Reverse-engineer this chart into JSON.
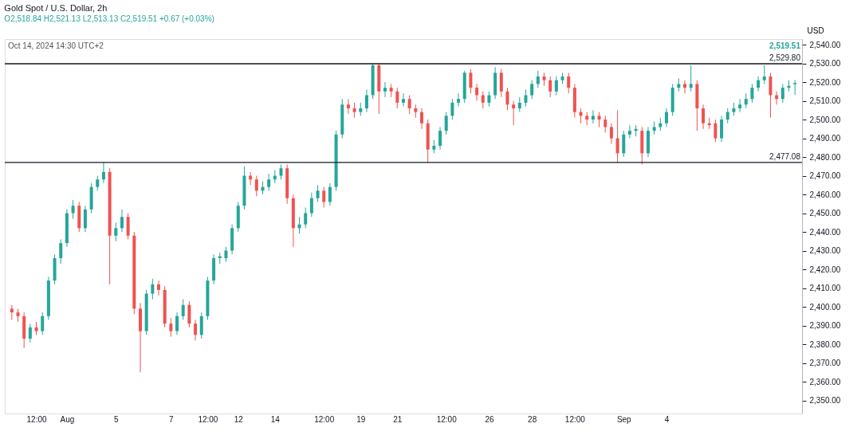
{
  "chart_data": {
    "type": "candlestick",
    "title": "Gold Spot / U.S. Dollar, 2h",
    "subtitle": "O2,518.84 H2,521.13 L2,513.13 C2,519.51 +0.67 (+0.03%)",
    "ylabel": "USD",
    "annotations": [
      "Oct 14, 2024 14:30 UTC+2",
      "2,519.51"
    ],
    "categories": [
      null,
      null,
      null,
      null,
      "12:00",
      null,
      null,
      null,
      null,
      "Aug",
      null,
      null,
      null,
      null,
      null,
      null,
      null,
      "5",
      null,
      null,
      null,
      null,
      null,
      null,
      null,
      null,
      "7",
      null,
      null,
      null,
      null,
      null,
      "12:00",
      null,
      null,
      null,
      null,
      "12",
      null,
      null,
      null,
      null,
      null,
      "14",
      null,
      null,
      null,
      null,
      null,
      null,
      null,
      "12:00",
      null,
      null,
      null,
      null,
      null,
      "19",
      null,
      null,
      null,
      null,
      null,
      "21",
      null,
      null,
      null,
      null,
      null,
      null,
      null,
      "12:00",
      null,
      null,
      null,
      null,
      null,
      null,
      "26",
      null,
      null,
      null,
      null,
      null,
      null,
      "28",
      null,
      null,
      null,
      null,
      null,
      null,
      "12:00",
      null,
      null,
      null,
      null,
      null,
      null,
      null,
      "Sep",
      null,
      null,
      null,
      null,
      null,
      null,
      "4",
      null,
      null,
      null,
      null,
      null,
      null,
      null,
      null,
      null,
      null,
      null,
      null,
      null,
      null,
      null,
      null,
      null,
      null,
      null,
      null,
      null
    ],
    "ohlc": [
      [
        2399,
        2401,
        2393,
        2397
      ],
      [
        2397,
        2399,
        2392,
        2395
      ],
      [
        2395,
        2397,
        2378,
        2383
      ],
      [
        2383,
        2391,
        2381,
        2389
      ],
      [
        2389,
        2392,
        2385,
        2387
      ],
      [
        2387,
        2397,
        2385,
        2395
      ],
      [
        2395,
        2416,
        2393,
        2414
      ],
      [
        2414,
        2428,
        2412,
        2426
      ],
      [
        2426,
        2436,
        2423,
        2434
      ],
      [
        2434,
        2452,
        2432,
        2450
      ],
      [
        2450,
        2457,
        2447,
        2454
      ],
      [
        2454,
        2456,
        2440,
        2442
      ],
      [
        2442,
        2454,
        2440,
        2452
      ],
      [
        2452,
        2466,
        2450,
        2464
      ],
      [
        2464,
        2470,
        2462,
        2468
      ],
      [
        2468,
        2477,
        2466,
        2472
      ],
      [
        2472,
        2474,
        2412,
        2438
      ],
      [
        2438,
        2445,
        2435,
        2442
      ],
      [
        2442,
        2452,
        2440,
        2448
      ],
      [
        2448,
        2450,
        2436,
        2438
      ],
      [
        2438,
        2440,
        2396,
        2399
      ],
      [
        2399,
        2402,
        2365,
        2387
      ],
      [
        2387,
        2409,
        2385,
        2407
      ],
      [
        2407,
        2415,
        2404,
        2412
      ],
      [
        2412,
        2414,
        2406,
        2409
      ],
      [
        2409,
        2411,
        2389,
        2391
      ],
      [
        2391,
        2394,
        2384,
        2387
      ],
      [
        2387,
        2397,
        2385,
        2395
      ],
      [
        2395,
        2404,
        2393,
        2401
      ],
      [
        2401,
        2403,
        2389,
        2391
      ],
      [
        2391,
        2393,
        2382,
        2385
      ],
      [
        2385,
        2397,
        2383,
        2395
      ],
      [
        2395,
        2416,
        2393,
        2414
      ],
      [
        2414,
        2428,
        2412,
        2426
      ],
      [
        2426,
        2429,
        2423,
        2427
      ],
      [
        2426,
        2432,
        2424,
        2430
      ],
      [
        2430,
        2444,
        2428,
        2442
      ],
      [
        2442,
        2456,
        2440,
        2454
      ],
      [
        2454,
        2475,
        2452,
        2470
      ],
      [
        2470,
        2472,
        2465,
        2468
      ],
      [
        2468,
        2470,
        2459,
        2462
      ],
      [
        2462,
        2467,
        2460,
        2464
      ],
      [
        2464,
        2471,
        2462,
        2468
      ],
      [
        2468,
        2473,
        2466,
        2470
      ],
      [
        2470,
        2476,
        2468,
        2474
      ],
      [
        2474,
        2476,
        2455,
        2458
      ],
      [
        2458,
        2460,
        2432,
        2442
      ],
      [
        2442,
        2448,
        2439,
        2444
      ],
      [
        2444,
        2453,
        2442,
        2450
      ],
      [
        2450,
        2461,
        2448,
        2458
      ],
      [
        2458,
        2465,
        2456,
        2462
      ],
      [
        2462,
        2464,
        2453,
        2456
      ],
      [
        2456,
        2466,
        2454,
        2464
      ],
      [
        2464,
        2494,
        2462,
        2492
      ],
      [
        2492,
        2511,
        2490,
        2508
      ],
      [
        2508,
        2511,
        2503,
        2506
      ],
      [
        2506,
        2509,
        2501,
        2504
      ],
      [
        2504,
        2509,
        2502,
        2506
      ],
      [
        2506,
        2516,
        2504,
        2513
      ],
      [
        2513,
        2530,
        2511,
        2529
      ],
      [
        2529,
        2530,
        2503,
        2515
      ],
      [
        2515,
        2520,
        2512,
        2517
      ],
      [
        2517,
        2519,
        2512,
        2515
      ],
      [
        2515,
        2517,
        2506,
        2509
      ],
      [
        2509,
        2514,
        2507,
        2511
      ],
      [
        2511,
        2513,
        2503,
        2506
      ],
      [
        2506,
        2508,
        2501,
        2504
      ],
      [
        2504,
        2506,
        2495,
        2498
      ],
      [
        2498,
        2500,
        2477,
        2484
      ],
      [
        2484,
        2489,
        2482,
        2486
      ],
      [
        2486,
        2496,
        2484,
        2494
      ],
      [
        2494,
        2504,
        2492,
        2502
      ],
      [
        2502,
        2511,
        2500,
        2509
      ],
      [
        2509,
        2514,
        2507,
        2511
      ],
      [
        2511,
        2526,
        2509,
        2525
      ],
      [
        2525,
        2527,
        2514,
        2517
      ],
      [
        2517,
        2519,
        2510,
        2513
      ],
      [
        2513,
        2515,
        2506,
        2509
      ],
      [
        2509,
        2515,
        2507,
        2513
      ],
      [
        2513,
        2528,
        2511,
        2525
      ],
      [
        2525,
        2527,
        2512,
        2515
      ],
      [
        2515,
        2517,
        2505,
        2508
      ],
      [
        2508,
        2510,
        2497,
        2506
      ],
      [
        2506,
        2512,
        2504,
        2509
      ],
      [
        2509,
        2516,
        2507,
        2513
      ],
      [
        2513,
        2521,
        2511,
        2519
      ],
      [
        2519,
        2526,
        2517,
        2523
      ],
      [
        2523,
        2525,
        2518,
        2521
      ],
      [
        2521,
        2523,
        2512,
        2515
      ],
      [
        2515,
        2523,
        2513,
        2521
      ],
      [
        2521,
        2525,
        2519,
        2523
      ],
      [
        2523,
        2525,
        2514,
        2517
      ],
      [
        2517,
        2519,
        2501,
        2504
      ],
      [
        2504,
        2506,
        2498,
        2502
      ],
      [
        2502,
        2504,
        2497,
        2500
      ],
      [
        2500,
        2505,
        2498,
        2502
      ],
      [
        2502,
        2504,
        2496,
        2500
      ],
      [
        2500,
        2502,
        2493,
        2496
      ],
      [
        2496,
        2498,
        2487,
        2490
      ],
      [
        2490,
        2505,
        2477,
        2482
      ],
      [
        2482,
        2494,
        2480,
        2492
      ],
      [
        2492,
        2497,
        2490,
        2494
      ],
      [
        2494,
        2497,
        2491,
        2495
      ],
      [
        2494,
        2496,
        2476,
        2482
      ],
      [
        2482,
        2496,
        2480,
        2494
      ],
      [
        2494,
        2499,
        2492,
        2496
      ],
      [
        2496,
        2501,
        2494,
        2498
      ],
      [
        2498,
        2506,
        2496,
        2504
      ],
      [
        2504,
        2519,
        2502,
        2517
      ],
      [
        2517,
        2522,
        2515,
        2519
      ],
      [
        2519,
        2521,
        2514,
        2517
      ],
      [
        2517,
        2529,
        2515,
        2519
      ],
      [
        2519,
        2521,
        2494,
        2506
      ],
      [
        2506,
        2508,
        2495,
        2498
      ],
      [
        2498,
        2501,
        2495,
        2497
      ],
      [
        2498,
        2500,
        2488,
        2490
      ],
      [
        2490,
        2502,
        2488,
        2500
      ],
      [
        2500,
        2506,
        2498,
        2504
      ],
      [
        2504,
        2509,
        2502,
        2506
      ],
      [
        2506,
        2511,
        2504,
        2508
      ],
      [
        2508,
        2514,
        2506,
        2511
      ],
      [
        2511,
        2519,
        2509,
        2517
      ],
      [
        2517,
        2523,
        2515,
        2521
      ],
      [
        2521,
        2529,
        2519,
        2523
      ],
      [
        2523,
        2525,
        2501,
        2513
      ],
      [
        2513,
        2515,
        2508,
        2511
      ],
      [
        2511,
        2519,
        2509,
        2517
      ],
      [
        2517,
        2521,
        2515,
        2518
      ],
      [
        2518.84,
        2521.13,
        2513.13,
        2519.51
      ]
    ],
    "ylim": [
      2343,
      2543
    ],
    "yticks": [
      {
        "value": 2350,
        "label": "2,350.00"
      },
      {
        "value": 2360,
        "label": "2,360.00"
      },
      {
        "value": 2370,
        "label": "2,370.00"
      },
      {
        "value": 2380,
        "label": "2,380.00"
      },
      {
        "value": 2390,
        "label": "2,390.00"
      },
      {
        "value": 2400,
        "label": "2,400.00"
      },
      {
        "value": 2410,
        "label": "2,410.00"
      },
      {
        "value": 2420,
        "label": "2,420.00"
      },
      {
        "value": 2430,
        "label": "2,430.00"
      },
      {
        "value": 2440,
        "label": "2,440.00"
      },
      {
        "value": 2450,
        "label": "2,450.00"
      },
      {
        "value": 2460,
        "label": "2,460.00"
      },
      {
        "value": 2470,
        "label": "2,470.00"
      },
      {
        "value": 2480,
        "label": "2,480.00"
      },
      {
        "value": 2490,
        "label": "2,490.00"
      },
      {
        "value": 2500,
        "label": "2,500.00"
      },
      {
        "value": 2510,
        "label": "2,510.00"
      },
      {
        "value": 2520,
        "label": "2,520.00"
      },
      {
        "value": 2530,
        "label": "2,530.00"
      },
      {
        "value": 2540,
        "label": "2,540.00"
      }
    ],
    "ref_lines": [
      {
        "axis": "y",
        "value": 2529.8,
        "label": "2,529.80",
        "color": "#131722"
      },
      {
        "axis": "y",
        "value": 2477.08,
        "label": "2,477.08",
        "color": "#131722"
      }
    ]
  }
}
